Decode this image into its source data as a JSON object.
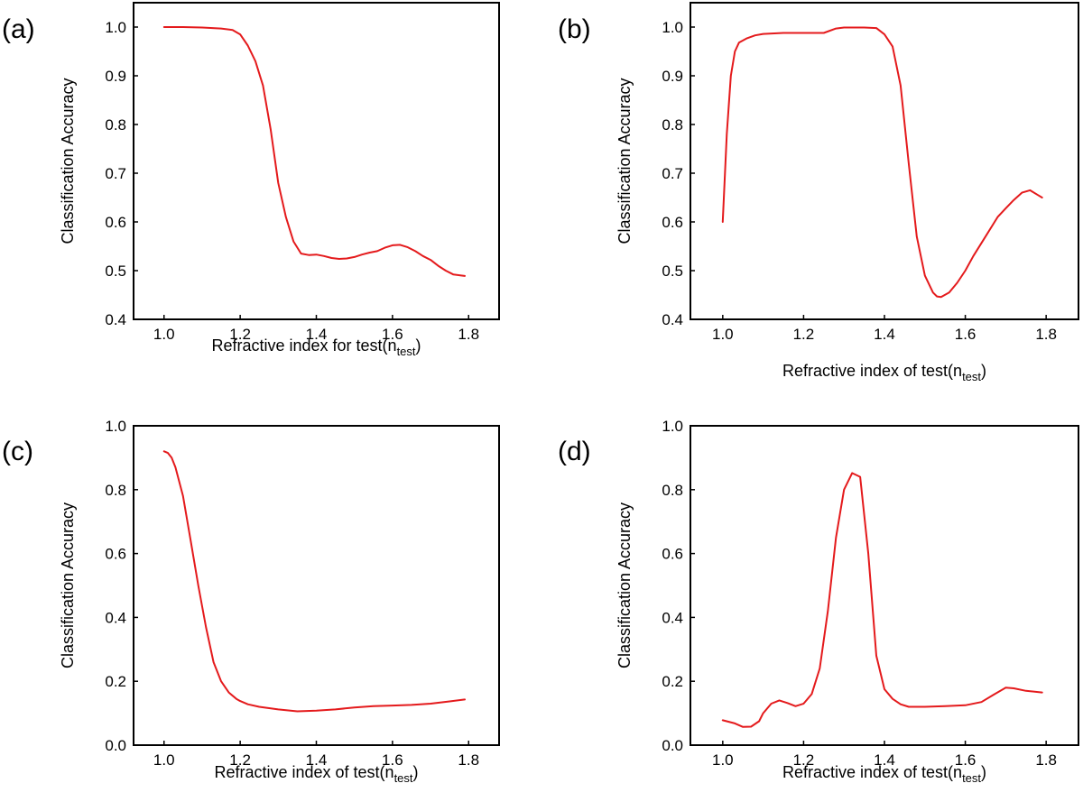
{
  "chart_data": [
    {
      "type": "line",
      "panel_label": "(a)",
      "xlabel": "Refractive index for test(n",
      "xlabel_sub": "test",
      "xlabel_end": ")",
      "ylabel": "Classification Accuracy",
      "xlim": [
        0.92,
        1.88
      ],
      "ylim": [
        0.4,
        1.05
      ],
      "xticks": [
        "1.0",
        "1.2",
        "1.4",
        "1.6",
        "1.8"
      ],
      "xtick_values": [
        1.0,
        1.2,
        1.4,
        1.6,
        1.8
      ],
      "yticks": [
        "0.4",
        "0.5",
        "0.6",
        "0.7",
        "0.8",
        "0.9",
        "1.0"
      ],
      "ytick_values": [
        0.4,
        0.5,
        0.6,
        0.7,
        0.8,
        0.9,
        1.0
      ],
      "color": "#e41a1c",
      "x": [
        1.0,
        1.05,
        1.1,
        1.15,
        1.18,
        1.2,
        1.22,
        1.24,
        1.26,
        1.28,
        1.3,
        1.32,
        1.34,
        1.36,
        1.38,
        1.4,
        1.42,
        1.44,
        1.46,
        1.48,
        1.5,
        1.52,
        1.54,
        1.56,
        1.58,
        1.6,
        1.62,
        1.64,
        1.66,
        1.68,
        1.7,
        1.72,
        1.74,
        1.76,
        1.78,
        1.79
      ],
      "y": [
        1.0,
        1.0,
        0.999,
        0.997,
        0.994,
        0.985,
        0.962,
        0.93,
        0.88,
        0.79,
        0.68,
        0.61,
        0.56,
        0.535,
        0.532,
        0.533,
        0.53,
        0.526,
        0.524,
        0.525,
        0.528,
        0.533,
        0.537,
        0.54,
        0.547,
        0.552,
        0.553,
        0.548,
        0.54,
        0.53,
        0.522,
        0.51,
        0.5,
        0.492,
        0.49,
        0.489
      ]
    },
    {
      "type": "line",
      "panel_label": "(b)",
      "xlabel": "Refractive index of test(n",
      "xlabel_sub": "test",
      "xlabel_end": ")",
      "ylabel": "Classification Accuracy",
      "xlim": [
        0.92,
        1.88
      ],
      "ylim": [
        0.4,
        1.05
      ],
      "xticks": [
        "1.0",
        "1.2",
        "1.4",
        "1.6",
        "1.8"
      ],
      "xtick_values": [
        1.0,
        1.2,
        1.4,
        1.6,
        1.8
      ],
      "yticks": [
        "0.4",
        "0.5",
        "0.6",
        "0.7",
        "0.8",
        "0.9",
        "1.0"
      ],
      "ytick_values": [
        0.4,
        0.5,
        0.6,
        0.7,
        0.8,
        0.9,
        1.0
      ],
      "color": "#e41a1c",
      "x": [
        1.0,
        1.01,
        1.02,
        1.03,
        1.04,
        1.06,
        1.08,
        1.1,
        1.15,
        1.2,
        1.25,
        1.28,
        1.3,
        1.35,
        1.38,
        1.4,
        1.42,
        1.44,
        1.46,
        1.48,
        1.5,
        1.52,
        1.53,
        1.54,
        1.56,
        1.58,
        1.6,
        1.62,
        1.65,
        1.68,
        1.7,
        1.72,
        1.74,
        1.76,
        1.78,
        1.79
      ],
      "y": [
        0.6,
        0.78,
        0.9,
        0.95,
        0.968,
        0.977,
        0.983,
        0.986,
        0.988,
        0.988,
        0.988,
        0.997,
        0.999,
        0.999,
        0.998,
        0.985,
        0.96,
        0.88,
        0.72,
        0.57,
        0.49,
        0.455,
        0.447,
        0.446,
        0.455,
        0.475,
        0.5,
        0.53,
        0.57,
        0.61,
        0.628,
        0.645,
        0.66,
        0.665,
        0.655,
        0.65
      ]
    },
    {
      "type": "line",
      "panel_label": "(c)",
      "xlabel": "Refractive index of test(n",
      "xlabel_sub": "test",
      "xlabel_end": ")",
      "ylabel": "Classification Accuracy",
      "xlim": [
        0.92,
        1.88
      ],
      "ylim": [
        0.0,
        1.0
      ],
      "xticks": [
        "1.0",
        "1.2",
        "1.4",
        "1.6",
        "1.8"
      ],
      "xtick_values": [
        1.0,
        1.2,
        1.4,
        1.6,
        1.8
      ],
      "yticks": [
        "0.0",
        "0.2",
        "0.4",
        "0.6",
        "0.8",
        "1.0"
      ],
      "ytick_values": [
        0.0,
        0.2,
        0.4,
        0.6,
        0.8,
        1.0
      ],
      "color": "#e41a1c",
      "x": [
        1.0,
        1.01,
        1.02,
        1.03,
        1.05,
        1.07,
        1.09,
        1.11,
        1.13,
        1.15,
        1.17,
        1.19,
        1.2,
        1.22,
        1.25,
        1.3,
        1.35,
        1.4,
        1.45,
        1.5,
        1.55,
        1.6,
        1.65,
        1.7,
        1.75,
        1.79
      ],
      "y": [
        0.92,
        0.915,
        0.9,
        0.87,
        0.78,
        0.64,
        0.5,
        0.37,
        0.26,
        0.2,
        0.165,
        0.145,
        0.138,
        0.128,
        0.12,
        0.112,
        0.106,
        0.108,
        0.112,
        0.118,
        0.122,
        0.124,
        0.126,
        0.13,
        0.137,
        0.143
      ]
    },
    {
      "type": "line",
      "panel_label": "(d)",
      "xlabel": "Refractive index of test(n",
      "xlabel_sub": "test",
      "xlabel_end": ")",
      "ylabel": "Classification Accuracy",
      "xlim": [
        0.92,
        1.88
      ],
      "ylim": [
        0.0,
        1.0
      ],
      "xticks": [
        "1.0",
        "1.2",
        "1.4",
        "1.6",
        "1.8"
      ],
      "xtick_values": [
        1.0,
        1.2,
        1.4,
        1.6,
        1.8
      ],
      "yticks": [
        "0.0",
        "0.2",
        "0.4",
        "0.6",
        "0.8",
        "1.0"
      ],
      "ytick_values": [
        0.0,
        0.2,
        0.4,
        0.6,
        0.8,
        1.0
      ],
      "color": "#e41a1c",
      "x": [
        1.0,
        1.03,
        1.05,
        1.07,
        1.09,
        1.1,
        1.12,
        1.14,
        1.16,
        1.18,
        1.2,
        1.22,
        1.24,
        1.26,
        1.28,
        1.3,
        1.32,
        1.34,
        1.36,
        1.38,
        1.4,
        1.42,
        1.44,
        1.46,
        1.48,
        1.5,
        1.55,
        1.6,
        1.64,
        1.67,
        1.7,
        1.72,
        1.75,
        1.79
      ],
      "y": [
        0.078,
        0.068,
        0.057,
        0.058,
        0.075,
        0.1,
        0.13,
        0.14,
        0.132,
        0.122,
        0.13,
        0.16,
        0.24,
        0.42,
        0.65,
        0.8,
        0.852,
        0.84,
        0.6,
        0.28,
        0.175,
        0.145,
        0.128,
        0.12,
        0.12,
        0.12,
        0.122,
        0.125,
        0.135,
        0.158,
        0.18,
        0.178,
        0.17,
        0.165
      ]
    }
  ]
}
